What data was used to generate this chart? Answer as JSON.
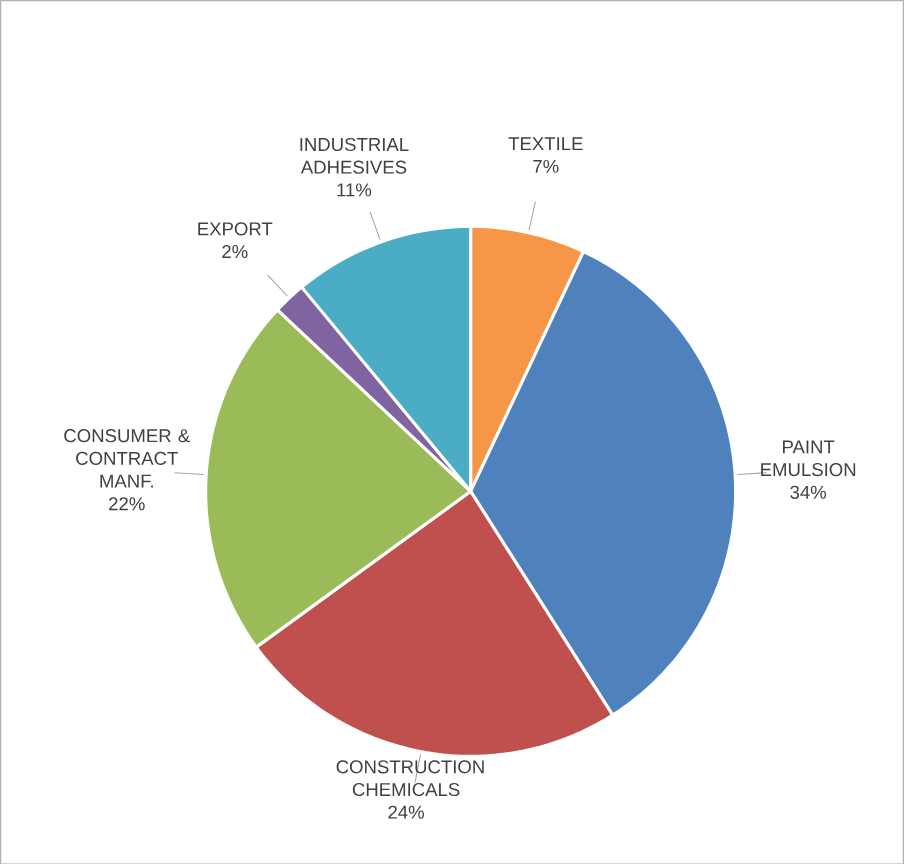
{
  "chart_data": {
    "type": "pie",
    "categories": [
      "TEXTILE",
      "PAINT EMULSION",
      "CONSTRUCTION CHEMICALS",
      "CONSUMER & CONTRACT MANF.",
      "EXPORT",
      "INDUSTRIAL ADHESIVES"
    ],
    "values": [
      7,
      34,
      24,
      22,
      2,
      11
    ],
    "value_labels": [
      "7%",
      "34%",
      "24%",
      "22%",
      "2%",
      "11%"
    ],
    "colors": [
      "#f79646",
      "#4f81bd",
      "#c0504d",
      "#9bbb59",
      "#8064a2",
      "#4bacc6"
    ]
  }
}
